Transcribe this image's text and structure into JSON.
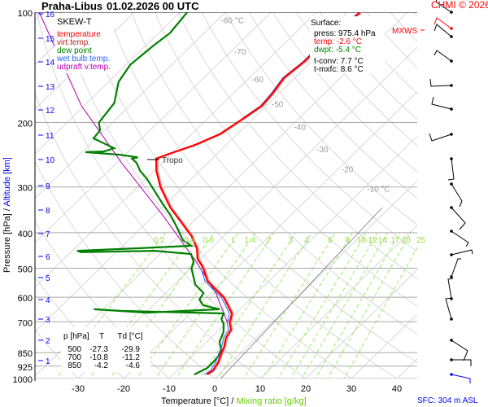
{
  "header": {
    "station": "Praha-Libus",
    "datetime": "01.02.2026 00 UTC",
    "copyright": "CHMI © 2026"
  },
  "legend": {
    "title": "SKEW-T",
    "items": [
      {
        "label": "temperature",
        "color": "#ff0000"
      },
      {
        "label": "virt.temp.",
        "color": "#b22222"
      },
      {
        "label": "dew point",
        "color": "#008000"
      },
      {
        "label": "wet bulb temp.",
        "color": "#1e64ff"
      },
      {
        "label": "udpraft v.temp.",
        "color": "#b000b0"
      }
    ]
  },
  "surface": {
    "title": "Surface:",
    "press": "press: 975.4 hPa",
    "temp": "temp: -2.6 °C",
    "dwpt": "dwpt: -5.4 °C",
    "tconv": "t-conv: 7.7 °C",
    "tmxfc": "t-mxfc: 8.6 °C"
  },
  "mxws_label": "MXWS",
  "tropo_label": "Tropo",
  "sfc_label": "SFC: 304 m ASL",
  "table": {
    "headers": [
      "p [hPa]",
      "T",
      "Td [°C]"
    ],
    "rows": [
      [
        "500",
        "-27.3",
        "-29.9"
      ],
      [
        "700",
        "-10.8",
        "-11.2"
      ],
      [
        "850",
        "-4.2",
        "-4.6"
      ]
    ]
  },
  "chart_data": {
    "type": "line",
    "title": "Praha-Libus 01.02.2026 00 UTC",
    "xlabel": "Temperature [°C]",
    "xlabel_sep": "/",
    "xlabel2": "Mixing ratio [g/kg]",
    "ylabel": "Pressure [hPa]",
    "ylabel_sep": "/",
    "ylabel2": "Altitude [km]",
    "xlim": [
      -40,
      45
    ],
    "ylim": [
      1000,
      100
    ],
    "x_ticks": [
      -30,
      -20,
      -10,
      0,
      10,
      20,
      30,
      40
    ],
    "y_ticks": [
      100,
      200,
      300,
      400,
      500,
      600,
      700,
      850,
      925,
      1000
    ],
    "altitude_ticks_km": [
      1,
      2,
      3,
      4,
      5,
      6,
      7,
      8,
      9,
      10,
      11,
      12,
      13,
      14,
      15,
      16
    ],
    "isotherm_labels": [
      "-80 °C",
      "-70",
      "-60",
      "-50",
      "-40",
      "-30",
      "-20",
      "-10 °C"
    ],
    "mixing_ratio_labels": [
      "0.2",
      "0.4",
      "0.6",
      "1",
      "1.4",
      "2",
      "3",
      "4",
      "6",
      "8",
      "10",
      "12",
      "14",
      "17",
      "20",
      "25"
    ],
    "tropopause_hpa": 251,
    "series": [
      {
        "name": "temperature",
        "color": "#ff0000",
        "points": [
          [
            975,
            -2.6
          ],
          [
            950,
            -2.2
          ],
          [
            903,
            -2.9
          ],
          [
            858,
            -4.1
          ],
          [
            815,
            -5.2
          ],
          [
            774,
            -6.7
          ],
          [
            736,
            -7.4
          ],
          [
            700,
            -9.5
          ],
          [
            690,
            -9.8
          ],
          [
            664,
            -10.9
          ],
          [
            631,
            -13.6
          ],
          [
            600,
            -16.3
          ],
          [
            570,
            -20.0
          ],
          [
            541,
            -23.6
          ],
          [
            500,
            -27.3
          ],
          [
            471,
            -30.7
          ],
          [
            441,
            -33.2
          ],
          [
            408,
            -37.2
          ],
          [
            378,
            -41.9
          ],
          [
            342,
            -48.1
          ],
          [
            300,
            -55.0
          ],
          [
            271,
            -59.5
          ],
          [
            251,
            -62.3
          ],
          [
            245,
            -60.9
          ],
          [
            230,
            -56.8
          ],
          [
            215,
            -53.8
          ],
          [
            194,
            -52.1
          ],
          [
            180,
            -51.0
          ],
          [
            167,
            -51.4
          ],
          [
            151,
            -52.4
          ],
          [
            136,
            -51.6
          ],
          [
            120,
            -51.7
          ],
          [
            108,
            -50.9
          ],
          [
            100,
            -50.4
          ]
        ]
      },
      {
        "name": "dew point",
        "color": "#008000",
        "points": [
          [
            975,
            -5.4
          ],
          [
            936,
            -4.0
          ],
          [
            903,
            -4.0
          ],
          [
            871,
            -4.2
          ],
          [
            836,
            -5.0
          ],
          [
            794,
            -7.2
          ],
          [
            747,
            -8.5
          ],
          [
            710,
            -10.3
          ],
          [
            688,
            -11.9
          ],
          [
            664,
            -12.7
          ],
          [
            654,
            -35.5
          ],
          [
            647,
            -42.1
          ],
          [
            661,
            -29.8
          ],
          [
            647,
            -14.5
          ],
          [
            631,
            -19.0
          ],
          [
            609,
            -21.1
          ],
          [
            584,
            -21.7
          ],
          [
            555,
            -25.3
          ],
          [
            528,
            -27.5
          ],
          [
            500,
            -29.9
          ],
          [
            481,
            -30.8
          ],
          [
            457,
            -33.2
          ],
          [
            448,
            -41.9
          ],
          [
            452,
            -57.7
          ],
          [
            448,
            -58.9
          ],
          [
            441,
            -46.1
          ],
          [
            434,
            -35.0
          ],
          [
            419,
            -38.1
          ],
          [
            398,
            -40.8
          ],
          [
            378,
            -43.5
          ],
          [
            359,
            -46.3
          ],
          [
            333,
            -50.8
          ],
          [
            308,
            -55.3
          ],
          [
            285,
            -59.8
          ],
          [
            271,
            -63.1
          ],
          [
            258,
            -65.6
          ],
          [
            251,
            -67.6
          ],
          [
            249,
            -66.6
          ],
          [
            245,
            -71.1
          ],
          [
            241,
            -79.3
          ],
          [
            240,
            -75.4
          ],
          [
            235,
            -73.9
          ],
          [
            221,
            -80.6
          ],
          [
            210,
            -81.0
          ],
          [
            200,
            -83.0
          ],
          [
            190,
            -83.4
          ],
          [
            177,
            -84.0
          ],
          [
            155,
            -87.8
          ],
          [
            139,
            -89.1
          ],
          [
            123,
            -88.3
          ],
          [
            114,
            -87.5
          ],
          [
            100,
            -88.4
          ]
        ]
      },
      {
        "name": "updraft v.temp.",
        "color": "#b000b0",
        "points": [
          [
            700,
            -10.0
          ],
          [
            584,
            -19.0
          ],
          [
            476,
            -30.8
          ],
          [
            359,
            -48.0
          ],
          [
            258,
            -68.9
          ],
          [
            180,
            -90.6
          ],
          [
            100,
            -120.9
          ]
        ]
      }
    ]
  }
}
